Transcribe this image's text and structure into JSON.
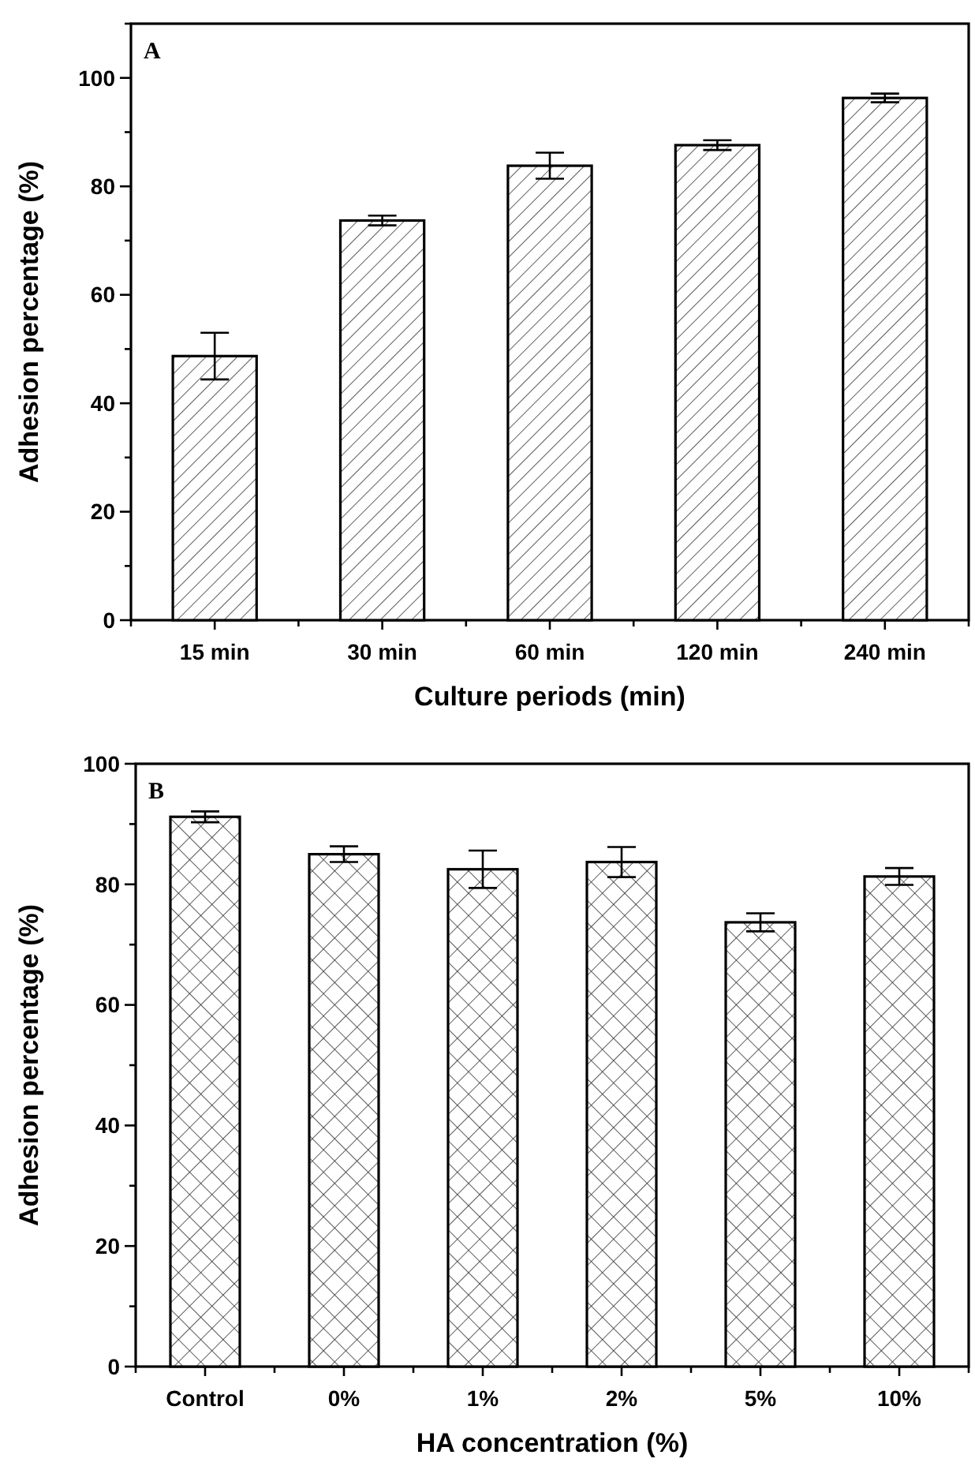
{
  "chart_data": [
    {
      "type": "bar",
      "xlabel": "Culture periods (min)",
      "ylabel": "Adhesion percentage (%)",
      "annotations": [
        "A"
      ],
      "categories": [
        "15 min",
        "30 min",
        "60 min",
        "120 min",
        "240 min"
      ],
      "values": [
        48.7,
        73.7,
        83.8,
        87.6,
        96.3
      ],
      "errors": [
        4.3,
        0.9,
        2.4,
        0.9,
        0.8
      ],
      "color": "#ffffff",
      "ylim": [
        0,
        110
      ],
      "yticks": [
        0,
        {
          "value": 10,
          "label": null
        },
        20,
        {
          "value": 30,
          "label": null
        },
        40,
        {
          "value": 50,
          "label": null
        },
        60,
        {
          "value": 70,
          "label": null
        },
        80,
        {
          "value": 90,
          "label": null
        },
        100,
        {
          "value": 110,
          "label": null
        }
      ],
      "grid": false
    },
    {
      "type": "bar",
      "xlabel": "HA concentration (%)",
      "ylabel": "Adhesion percentage (%)",
      "annotations": [
        "B"
      ],
      "categories": [
        "Control",
        "0%",
        "1%",
        "2%",
        "5%",
        "10%"
      ],
      "values": [
        91.2,
        85.0,
        82.5,
        83.7,
        73.7,
        81.3
      ],
      "errors": [
        0.9,
        1.3,
        3.1,
        2.5,
        1.5,
        1.4
      ],
      "color": "#ffffff",
      "ylim": [
        0,
        100
      ],
      "yticks": [
        0,
        {
          "value": 10,
          "label": null
        },
        20,
        {
          "value": 30,
          "label": null
        },
        40,
        {
          "value": 50,
          "label": null
        },
        60,
        {
          "value": 70,
          "label": null
        },
        80,
        {
          "value": 90,
          "label": null
        },
        100
      ],
      "grid": false
    }
  ]
}
